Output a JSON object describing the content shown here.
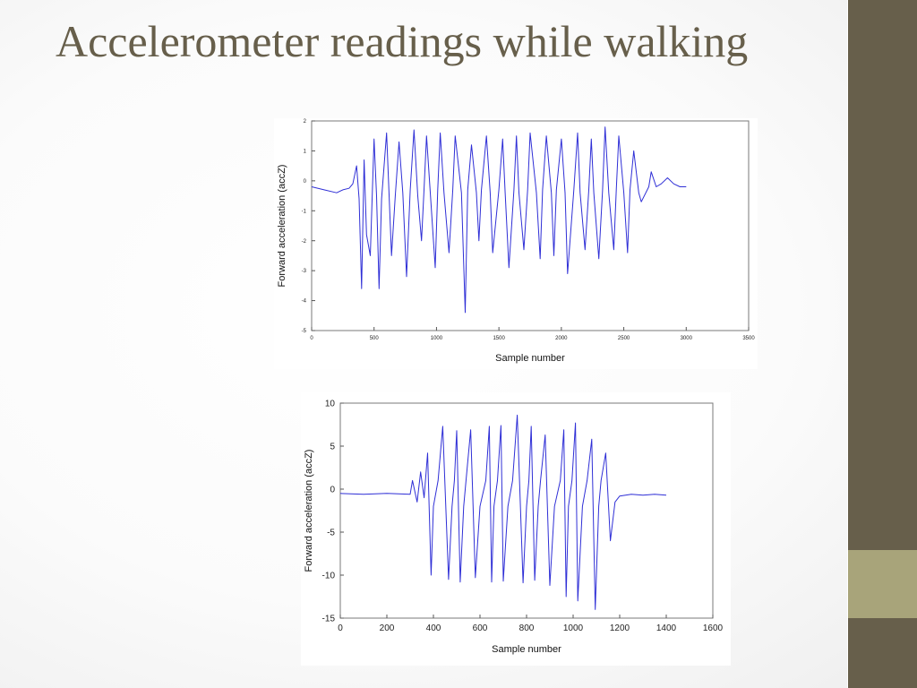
{
  "slide": {
    "title": "Accelerometer readings while walking",
    "colors": {
      "title": "#675f4b",
      "sidebar": "#675f4b",
      "sidebar_accent": "#a8a47a",
      "signal": "#2f2fd6"
    }
  },
  "chart_data": [
    {
      "type": "line",
      "title": "",
      "xlabel": "Sample number",
      "ylabel": "Forward acceleration (accZ)",
      "xlim": [
        0,
        3500
      ],
      "ylim": [
        -5,
        2
      ],
      "xticks": [
        0,
        500,
        1000,
        1500,
        2000,
        2500,
        3000,
        3500
      ],
      "yticks": [
        2,
        1,
        0,
        -1,
        -2,
        -3,
        -4,
        -5
      ],
      "grid": false,
      "legend": "none",
      "series": [
        {
          "x": [
            0,
            100,
            200,
            250,
            300,
            330,
            360,
            380,
            400,
            420,
            440,
            470,
            500,
            520,
            540,
            560,
            600,
            620,
            640,
            670,
            700,
            730,
            760,
            790,
            820,
            850,
            880,
            900,
            920,
            950,
            990,
            1010,
            1030,
            1060,
            1100,
            1130,
            1150,
            1200,
            1230,
            1250,
            1280,
            1320,
            1340,
            1360,
            1400,
            1430,
            1450,
            1500,
            1530,
            1550,
            1580,
            1620,
            1640,
            1660,
            1700,
            1730,
            1750,
            1800,
            1830,
            1850,
            1880,
            1920,
            1940,
            1960,
            2000,
            2030,
            2050,
            2100,
            2130,
            2150,
            2190,
            2220,
            2240,
            2260,
            2300,
            2330,
            2350,
            2380,
            2420,
            2440,
            2460,
            2500,
            2530,
            2550,
            2580,
            2620,
            2640,
            2700,
            2720,
            2760,
            2800,
            2850,
            2900,
            2950,
            3000
          ],
          "y": [
            -0.2,
            -0.3,
            -0.4,
            -0.3,
            -0.25,
            -0.1,
            0.5,
            -0.6,
            -3.6,
            0.7,
            -1.8,
            -2.5,
            1.4,
            -0.5,
            -3.6,
            -0.6,
            1.6,
            -0.4,
            -2.5,
            -0.5,
            1.3,
            -0.4,
            -3.2,
            -0.3,
            1.7,
            -0.5,
            -2.0,
            -0.3,
            1.5,
            -0.4,
            -2.9,
            -0.3,
            1.6,
            -0.4,
            -2.4,
            -0.3,
            1.5,
            -0.4,
            -4.4,
            -0.3,
            1.2,
            -0.4,
            -2.0,
            -0.3,
            1.5,
            -0.4,
            -2.4,
            -0.3,
            1.4,
            -0.4,
            -2.9,
            -0.3,
            1.5,
            -0.4,
            -2.3,
            -0.3,
            1.6,
            -0.4,
            -2.6,
            -0.3,
            1.5,
            -0.4,
            -2.5,
            -0.3,
            1.4,
            -0.4,
            -3.1,
            -0.3,
            1.6,
            -0.4,
            -2.3,
            -0.3,
            1.4,
            -0.4,
            -2.6,
            -0.3,
            1.8,
            -0.4,
            -2.3,
            -0.3,
            1.5,
            -0.4,
            -2.4,
            -0.3,
            1.0,
            -0.4,
            -0.7,
            -0.2,
            0.3,
            -0.2,
            -0.1,
            0.1,
            -0.1,
            -0.2,
            -0.2
          ]
        }
      ]
    },
    {
      "type": "line",
      "title": "",
      "xlabel": "Sample number",
      "ylabel": "Forward acceleration (accZ)",
      "xlim": [
        0,
        1600
      ],
      "ylim": [
        -15,
        10
      ],
      "xticks": [
        0,
        200,
        400,
        600,
        800,
        1000,
        1200,
        1400,
        1600
      ],
      "yticks": [
        10,
        5,
        0,
        -5,
        -10,
        -15
      ],
      "grid": false,
      "legend": "none",
      "series": [
        {
          "x": [
            0,
            100,
            200,
            300,
            310,
            330,
            345,
            360,
            375,
            390,
            400,
            420,
            440,
            465,
            480,
            490,
            500,
            515,
            530,
            540,
            560,
            580,
            600,
            625,
            640,
            650,
            660,
            675,
            690,
            700,
            720,
            740,
            760,
            785,
            800,
            810,
            820,
            835,
            850,
            860,
            880,
            900,
            920,
            945,
            960,
            970,
            980,
            995,
            1010,
            1020,
            1040,
            1060,
            1080,
            1095,
            1110,
            1120,
            1140,
            1160,
            1180,
            1200,
            1250,
            1300,
            1350,
            1400
          ],
          "y": [
            -0.5,
            -0.6,
            -0.5,
            -0.6,
            1.0,
            -1.5,
            2.0,
            -1.0,
            4.2,
            -10.0,
            -2.0,
            1.0,
            7.3,
            -10.5,
            -2.0,
            1.0,
            6.8,
            -10.8,
            -2.0,
            1.0,
            6.9,
            -10.3,
            -2.0,
            1.0,
            7.3,
            -10.8,
            -2.0,
            1.0,
            7.4,
            -10.7,
            -2.0,
            1.0,
            8.6,
            -10.9,
            -2.0,
            1.0,
            7.3,
            -10.6,
            -2.0,
            1.0,
            6.3,
            -11.2,
            -2.0,
            1.0,
            6.9,
            -12.5,
            -2.0,
            1.0,
            7.7,
            -13.0,
            -2.0,
            1.0,
            5.8,
            -14.0,
            -2.0,
            1.0,
            4.2,
            -6.0,
            -1.5,
            -0.8,
            -0.6,
            -0.7,
            -0.6,
            -0.7
          ]
        }
      ]
    }
  ]
}
